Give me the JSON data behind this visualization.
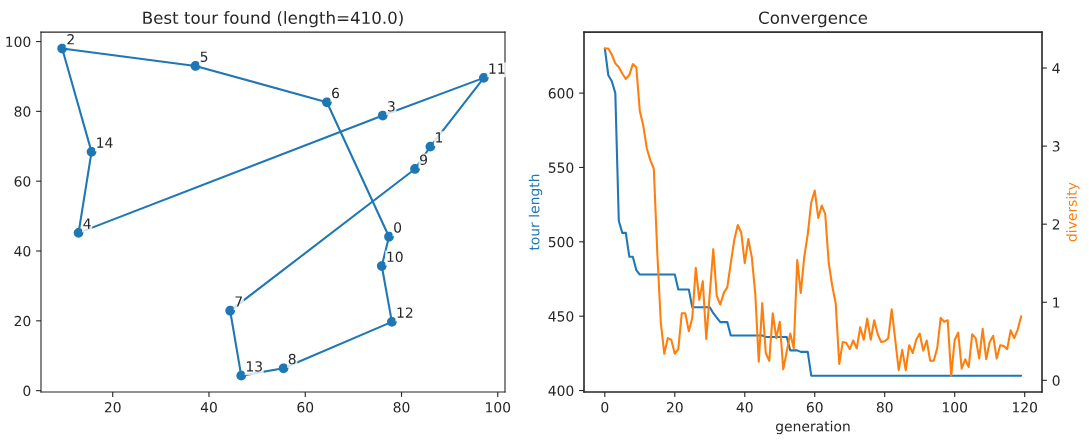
{
  "chart_data": [
    {
      "type": "line",
      "title": "Best tour found (length=410.0)",
      "grid": false,
      "xlim": [
        5.1,
        101.5
      ],
      "ylim": [
        -0.4,
        102.7
      ],
      "xticks": [
        20,
        40,
        60,
        80,
        100
      ],
      "yticks": [
        0,
        20,
        40,
        60,
        80,
        100
      ],
      "series": [
        {
          "type": "scatter",
          "marker": "circle",
          "color": "#1f77b4",
          "x": [
            77.4,
            86.0,
            9.5,
            76.1,
            12.9,
            37.2,
            64.5,
            44.4,
            55.5,
            82.8,
            75.9,
            97.1,
            78.0,
            46.7,
            15.6
          ],
          "values": [
            44.1,
            69.9,
            98.0,
            78.8,
            45.2,
            93.0,
            82.6,
            22.9,
            6.4,
            63.5,
            35.7,
            89.6,
            19.7,
            4.3,
            68.4
          ]
        },
        {
          "type": "line",
          "marker": "none",
          "color": "#1f77b4",
          "x": [
            9.5,
            37.2,
            64.5,
            77.4
          ],
          "values": [
            98.0,
            93.0,
            82.6,
            44.1
          ]
        },
        {
          "type": "line",
          "marker": "none",
          "color": "#1f77b4",
          "x": [
            77.4,
            75.9
          ],
          "values": [
            44.1,
            35.7
          ]
        },
        {
          "type": "line",
          "marker": "none",
          "color": "#1f77b4",
          "x": [
            75.9,
            78.0
          ],
          "values": [
            35.7,
            19.7
          ]
        },
        {
          "type": "line",
          "marker": "none",
          "color": "#1f77b4",
          "x": [
            78.0,
            55.5,
            46.7,
            44.4
          ],
          "values": [
            19.7,
            6.4,
            4.3,
            22.9
          ]
        },
        {
          "type": "line",
          "marker": "none",
          "color": "#1f77b4",
          "x": [
            44.4,
            82.8,
            86.0,
            97.1
          ],
          "values": [
            22.9,
            63.5,
            69.9,
            89.6
          ]
        },
        {
          "type": "line",
          "marker": "none",
          "color": "#1f77b4",
          "x": [
            97.1,
            76.1,
            12.9
          ],
          "values": [
            89.6,
            78.8,
            45.2
          ]
        },
        {
          "type": "line",
          "marker": "none",
          "color": "#1f77b4",
          "x": [
            12.9,
            15.6
          ],
          "values": [
            45.2,
            68.4
          ]
        },
        {
          "type": "line",
          "marker": "none",
          "color": "#1f77b4",
          "x": [
            15.6,
            9.5
          ],
          "values": [
            68.4,
            98.0
          ]
        }
      ],
      "annotations": [
        {
          "text": "0",
          "x": 77.4,
          "y": 44.1
        },
        {
          "text": "1",
          "x": 86.0,
          "y": 69.9
        },
        {
          "text": "2",
          "x": 9.5,
          "y": 98.0
        },
        {
          "text": "3",
          "x": 76.1,
          "y": 78.8
        },
        {
          "text": "4",
          "x": 12.9,
          "y": 45.2
        },
        {
          "text": "5",
          "x": 37.2,
          "y": 93.0
        },
        {
          "text": "6",
          "x": 64.5,
          "y": 82.6
        },
        {
          "text": "7",
          "x": 44.4,
          "y": 22.9
        },
        {
          "text": "8",
          "x": 55.5,
          "y": 6.4
        },
        {
          "text": "9",
          "x": 82.8,
          "y": 63.5
        },
        {
          "text": "10",
          "x": 75.9,
          "y": 35.7
        },
        {
          "text": "11",
          "x": 97.1,
          "y": 89.6
        },
        {
          "text": "12",
          "x": 78.0,
          "y": 19.7
        },
        {
          "text": "13",
          "x": 46.7,
          "y": 4.3
        },
        {
          "text": "14",
          "x": 15.6,
          "y": 68.4
        }
      ]
    },
    {
      "type": "line",
      "title": "Convergence",
      "xlabel": "generation",
      "ylabel": "tour length",
      "y2label": "diversity",
      "marker": "none",
      "grid": false,
      "xlim": [
        -5.95,
        124.95
      ],
      "ylim": [
        399,
        641
      ],
      "y2lim": [
        -0.15,
        4.46
      ],
      "xticks": [
        0,
        20,
        40,
        60,
        80,
        100,
        120
      ],
      "yticks": [
        400,
        450,
        500,
        550,
        600
      ],
      "y2ticks": [
        0,
        1,
        2,
        3,
        4
      ],
      "x": [
        0,
        1,
        2,
        3,
        4,
        5,
        6,
        7,
        8,
        9,
        10,
        11,
        12,
        13,
        14,
        15,
        16,
        17,
        18,
        19,
        20,
        21,
        22,
        23,
        24,
        25,
        26,
        27,
        28,
        29,
        30,
        31,
        32,
        33,
        34,
        35,
        36,
        37,
        38,
        39,
        40,
        41,
        42,
        43,
        44,
        45,
        46,
        47,
        48,
        49,
        50,
        51,
        52,
        53,
        54,
        55,
        56,
        57,
        58,
        59,
        60,
        61,
        62,
        63,
        64,
        65,
        66,
        67,
        68,
        69,
        70,
        71,
        72,
        73,
        74,
        75,
        76,
        77,
        78,
        79,
        80,
        81,
        82,
        83,
        84,
        85,
        86,
        87,
        88,
        89,
        90,
        91,
        92,
        93,
        94,
        95,
        96,
        97,
        98,
        99,
        100,
        101,
        102,
        103,
        104,
        105,
        106,
        107,
        108,
        109,
        110,
        111,
        112,
        113,
        114,
        115,
        116,
        117,
        118,
        119
      ],
      "series": [
        {
          "color": "#1f77b4",
          "values": [
            630,
            612,
            608,
            600,
            514,
            506,
            506,
            490,
            490,
            481,
            478,
            478,
            478,
            478,
            478,
            478,
            478,
            478,
            478,
            478,
            478,
            468,
            468,
            468,
            468,
            456,
            456,
            456,
            456,
            456,
            456,
            452,
            449,
            446,
            446,
            446,
            437,
            437,
            437,
            437,
            437,
            437,
            437,
            437,
            437,
            437,
            436,
            436,
            436,
            436,
            436,
            436,
            436,
            427,
            427,
            427,
            426,
            426,
            426,
            410,
            410,
            410,
            410,
            410,
            410,
            410,
            410,
            410,
            410,
            410,
            410,
            410,
            410,
            410,
            410,
            410,
            410,
            410,
            410,
            410,
            410,
            410,
            410,
            410,
            410,
            410,
            410,
            410,
            410,
            410,
            410,
            410,
            410,
            410,
            410,
            410,
            410,
            410,
            410,
            410,
            410,
            410,
            410,
            410,
            410,
            410,
            410,
            410,
            410,
            410,
            410,
            410,
            410,
            410,
            410,
            410,
            410,
            410,
            410,
            410
          ]
        },
        {
          "color": "#ff7f0e",
          "axis": "y2",
          "values": [
            4.25,
            4.25,
            4.17,
            4.06,
            4.01,
            3.93,
            3.86,
            3.91,
            4.05,
            4.01,
            3.45,
            3.26,
            2.97,
            2.82,
            2.71,
            1.63,
            0.74,
            0.34,
            0.54,
            0.52,
            0.34,
            0.4,
            0.86,
            0.86,
            0.63,
            0.8,
            1.44,
            1.03,
            1.27,
            0.53,
            1.11,
            1.68,
            1.08,
            0.97,
            1.12,
            1.19,
            1.5,
            1.8,
            1.99,
            1.89,
            1.5,
            1.81,
            1.58,
            1.11,
            0.24,
            0.99,
            0.35,
            0.25,
            0.86,
            0.54,
            0.75,
            0.14,
            0.37,
            0.6,
            0.41,
            1.54,
            1.12,
            1.58,
            1.87,
            2.28,
            2.43,
            2.08,
            2.24,
            2.13,
            1.5,
            1.21,
            0.98,
            0.21,
            0.49,
            0.48,
            0.4,
            0.51,
            0.41,
            0.68,
            0.52,
            0.79,
            0.52,
            0.77,
            0.59,
            0.49,
            0.5,
            0.54,
            0.91,
            0.52,
            0.13,
            0.39,
            0.13,
            0.45,
            0.35,
            0.52,
            0.6,
            0.38,
            0.51,
            0.25,
            0.25,
            0.41,
            0.8,
            0.75,
            0.77,
            0.06,
            0.52,
            0.61,
            0.15,
            0.27,
            0.17,
            0.59,
            0.54,
            0.28,
            0.66,
            0.27,
            0.49,
            0.57,
            0.28,
            0.45,
            0.44,
            0.4,
            0.64,
            0.54,
            0.65,
            0.82
          ]
        }
      ]
    }
  ]
}
